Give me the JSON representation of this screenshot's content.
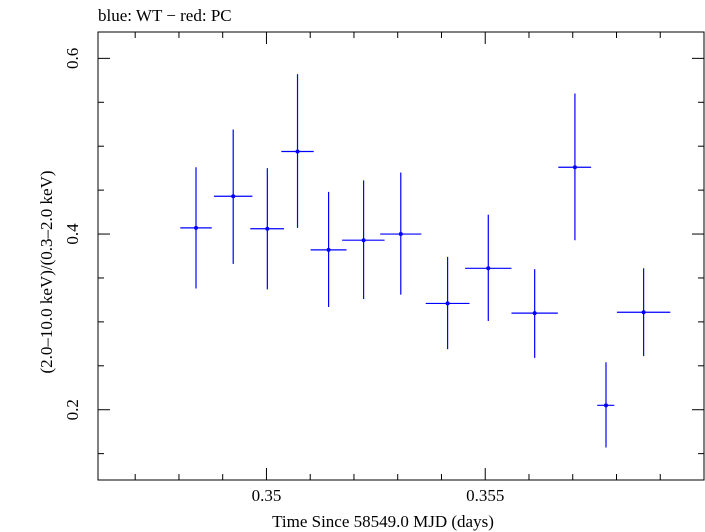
{
  "chart_data": {
    "type": "scatter",
    "title": "blue: WT − red: PC",
    "xlabel": "Time Since 58549.0 MJD (days)",
    "ylabel": "(2.0–10.0 keV)/(0.3–2.0 keV)",
    "xlim": [
      0.34615,
      0.36
    ],
    "ylim": [
      0.12,
      0.63
    ],
    "x_ticks": [
      {
        "value": 0.35,
        "label": "0.35"
      },
      {
        "value": 0.355,
        "label": "0.355"
      }
    ],
    "y_ticks": [
      {
        "value": 0.2,
        "label": "0.2"
      },
      {
        "value": 0.4,
        "label": "0.4"
      },
      {
        "value": 0.6,
        "label": "0.6"
      }
    ],
    "grid": false,
    "colors": {
      "WT": "#0000ff",
      "PC": "#ff0000",
      "axes": "#000000"
    },
    "series": [
      {
        "name": "WT",
        "color": "#0000ff",
        "points": [
          {
            "x": 0.34839,
            "y": 0.407,
            "x_lo": 0.34803,
            "x_hi": 0.34875,
            "y_lo": 0.338,
            "y_hi": 0.476
          },
          {
            "x": 0.34924,
            "y": 0.443,
            "x_lo": 0.3488,
            "x_hi": 0.34968,
            "y_lo": 0.366,
            "y_hi": 0.519
          },
          {
            "x": 0.35002,
            "y": 0.406,
            "x_lo": 0.34963,
            "x_hi": 0.3504,
            "y_lo": 0.337,
            "y_hi": 0.475
          },
          {
            "x": 0.35071,
            "y": 0.494,
            "x_lo": 0.35034,
            "x_hi": 0.35108,
            "y_lo": 0.407,
            "y_hi": 0.582
          },
          {
            "x": 0.35142,
            "y": 0.382,
            "x_lo": 0.35101,
            "x_hi": 0.35183,
            "y_lo": 0.317,
            "y_hi": 0.448
          },
          {
            "x": 0.35222,
            "y": 0.393,
            "x_lo": 0.35173,
            "x_hi": 0.3527,
            "y_lo": 0.326,
            "y_hi": 0.461
          },
          {
            "x": 0.35307,
            "y": 0.4,
            "x_lo": 0.3526,
            "x_hi": 0.35354,
            "y_lo": 0.331,
            "y_hi": 0.47
          },
          {
            "x": 0.35414,
            "y": 0.321,
            "x_lo": 0.35364,
            "x_hi": 0.35464,
            "y_lo": 0.269,
            "y_hi": 0.374
          },
          {
            "x": 0.35507,
            "y": 0.361,
            "x_lo": 0.35454,
            "x_hi": 0.3556,
            "y_lo": 0.301,
            "y_hi": 0.422
          },
          {
            "x": 0.35613,
            "y": 0.31,
            "x_lo": 0.3556,
            "x_hi": 0.35666,
            "y_lo": 0.259,
            "y_hi": 0.36
          },
          {
            "x": 0.35705,
            "y": 0.476,
            "x_lo": 0.35667,
            "x_hi": 0.35742,
            "y_lo": 0.393,
            "y_hi": 0.56
          },
          {
            "x": 0.35776,
            "y": 0.205,
            "x_lo": 0.35756,
            "x_hi": 0.35795,
            "y_lo": 0.157,
            "y_hi": 0.254
          },
          {
            "x": 0.35862,
            "y": 0.311,
            "x_lo": 0.35801,
            "x_hi": 0.35923,
            "y_lo": 0.261,
            "y_hi": 0.361
          }
        ]
      }
    ]
  }
}
